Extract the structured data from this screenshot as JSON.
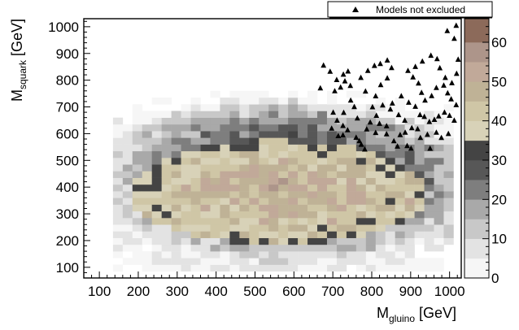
{
  "chart_data": {
    "type": "heatmap",
    "title": "",
    "xlabel": {
      "main": "M",
      "sub": "gluino",
      "unit": " [GeV]"
    },
    "ylabel": {
      "main": "M",
      "sub": "squark",
      "unit": " [GeV]"
    },
    "xlim": [
      60,
      1030
    ],
    "ylim": [
      60,
      1030
    ],
    "x_ticks": [
      100,
      200,
      300,
      400,
      500,
      600,
      700,
      800,
      900,
      1000
    ],
    "y_ticks": [
      100,
      200,
      300,
      400,
      500,
      600,
      700,
      800,
      900,
      1000
    ],
    "bin_width": 25,
    "z_range": [
      0,
      66
    ],
    "z_ticks": [
      0,
      10,
      20,
      30,
      40,
      50,
      60
    ],
    "palette_bands": [
      {
        "from": 0,
        "to": 5,
        "color": "#f6f6f6"
      },
      {
        "from": 5,
        "to": 10,
        "color": "#e3e3e3"
      },
      {
        "from": 10,
        "to": 15,
        "color": "#c8c8c8"
      },
      {
        "from": 15,
        "to": 20,
        "color": "#a9a9a9"
      },
      {
        "from": 20,
        "to": 25,
        "color": "#7e7e7e"
      },
      {
        "from": 25,
        "to": 30,
        "color": "#575757"
      },
      {
        "from": 30,
        "to": 35,
        "color": "#444444"
      },
      {
        "from": 35,
        "to": 40,
        "color": "#d8d2b8"
      },
      {
        "from": 40,
        "to": 45,
        "color": "#cfc6a6"
      },
      {
        "from": 45,
        "to": 50,
        "color": "#bfb296"
      },
      {
        "from": 50,
        "to": 55,
        "color": "#c1a999"
      },
      {
        "from": 55,
        "to": 60,
        "color": "#ad958a"
      },
      {
        "from": 60,
        "to": 66,
        "color": "#8c6a5a"
      }
    ],
    "legend": {
      "label": "Models not excluded",
      "position": "top-right"
    },
    "markers": [
      [
        676,
        856
      ],
      [
        693,
        833
      ],
      [
        710,
        802
      ],
      [
        720,
        774
      ],
      [
        731,
        797
      ],
      [
        739,
        834
      ],
      [
        668,
        771
      ],
      [
        705,
        760
      ],
      [
        746,
        725
      ],
      [
        755,
        701
      ],
      [
        701,
        680
      ],
      [
        728,
        679
      ],
      [
        711,
        650
      ],
      [
        726,
        630
      ],
      [
        738,
        614
      ],
      [
        697,
        620
      ],
      [
        714,
        592
      ],
      [
        726,
        595
      ],
      [
        760,
        586
      ],
      [
        773,
        560
      ],
      [
        782,
        542
      ],
      [
        768,
        573
      ],
      [
        787,
        617
      ],
      [
        796,
        643
      ],
      [
        812,
        668
      ],
      [
        802,
        700
      ],
      [
        784,
        759
      ],
      [
        772,
        810
      ],
      [
        790,
        836
      ],
      [
        807,
        855
      ],
      [
        822,
        862
      ],
      [
        840,
        875
      ],
      [
        851,
        847
      ],
      [
        840,
        808
      ],
      [
        823,
        783
      ],
      [
        810,
        741
      ],
      [
        828,
        707
      ],
      [
        848,
        692
      ],
      [
        820,
        638
      ],
      [
        838,
        599
      ],
      [
        857,
        573
      ],
      [
        873,
        596
      ],
      [
        866,
        553
      ],
      [
        891,
        555
      ],
      [
        901,
        545
      ],
      [
        886,
        605
      ],
      [
        903,
        622
      ],
      [
        885,
        650
      ],
      [
        869,
        671
      ],
      [
        853,
        714
      ],
      [
        876,
        741
      ],
      [
        895,
        717
      ],
      [
        912,
        702
      ],
      [
        924,
        671
      ],
      [
        935,
        664
      ],
      [
        948,
        645
      ],
      [
        961,
        653
      ],
      [
        972,
        666
      ],
      [
        987,
        680
      ],
      [
        1000,
        668
      ],
      [
        1012,
        650
      ],
      [
        1017,
        708
      ],
      [
        1004,
        730
      ],
      [
        995,
        752
      ],
      [
        985,
        781
      ],
      [
        966,
        772
      ],
      [
        954,
        742
      ],
      [
        937,
        725
      ],
      [
        928,
        754
      ],
      [
        920,
        789
      ],
      [
        906,
        812
      ],
      [
        893,
        836
      ],
      [
        912,
        851
      ],
      [
        930,
        871
      ],
      [
        952,
        893
      ],
      [
        968,
        880
      ],
      [
        975,
        846
      ],
      [
        989,
        810
      ],
      [
        1006,
        790
      ],
      [
        1018,
        825
      ],
      [
        1022,
        878
      ],
      [
        1012,
        956
      ],
      [
        1017,
        1005
      ],
      [
        994,
        985
      ],
      [
        925,
        585
      ],
      [
        918,
        618
      ],
      [
        943,
        597
      ],
      [
        966,
        605
      ],
      [
        979,
        585
      ],
      [
        997,
        600
      ],
      [
        950,
        545
      ],
      [
        838,
        629
      ],
      [
        810,
        604
      ],
      [
        763,
        658
      ],
      [
        745,
        780
      ],
      [
        727,
        822
      ]
    ]
  }
}
